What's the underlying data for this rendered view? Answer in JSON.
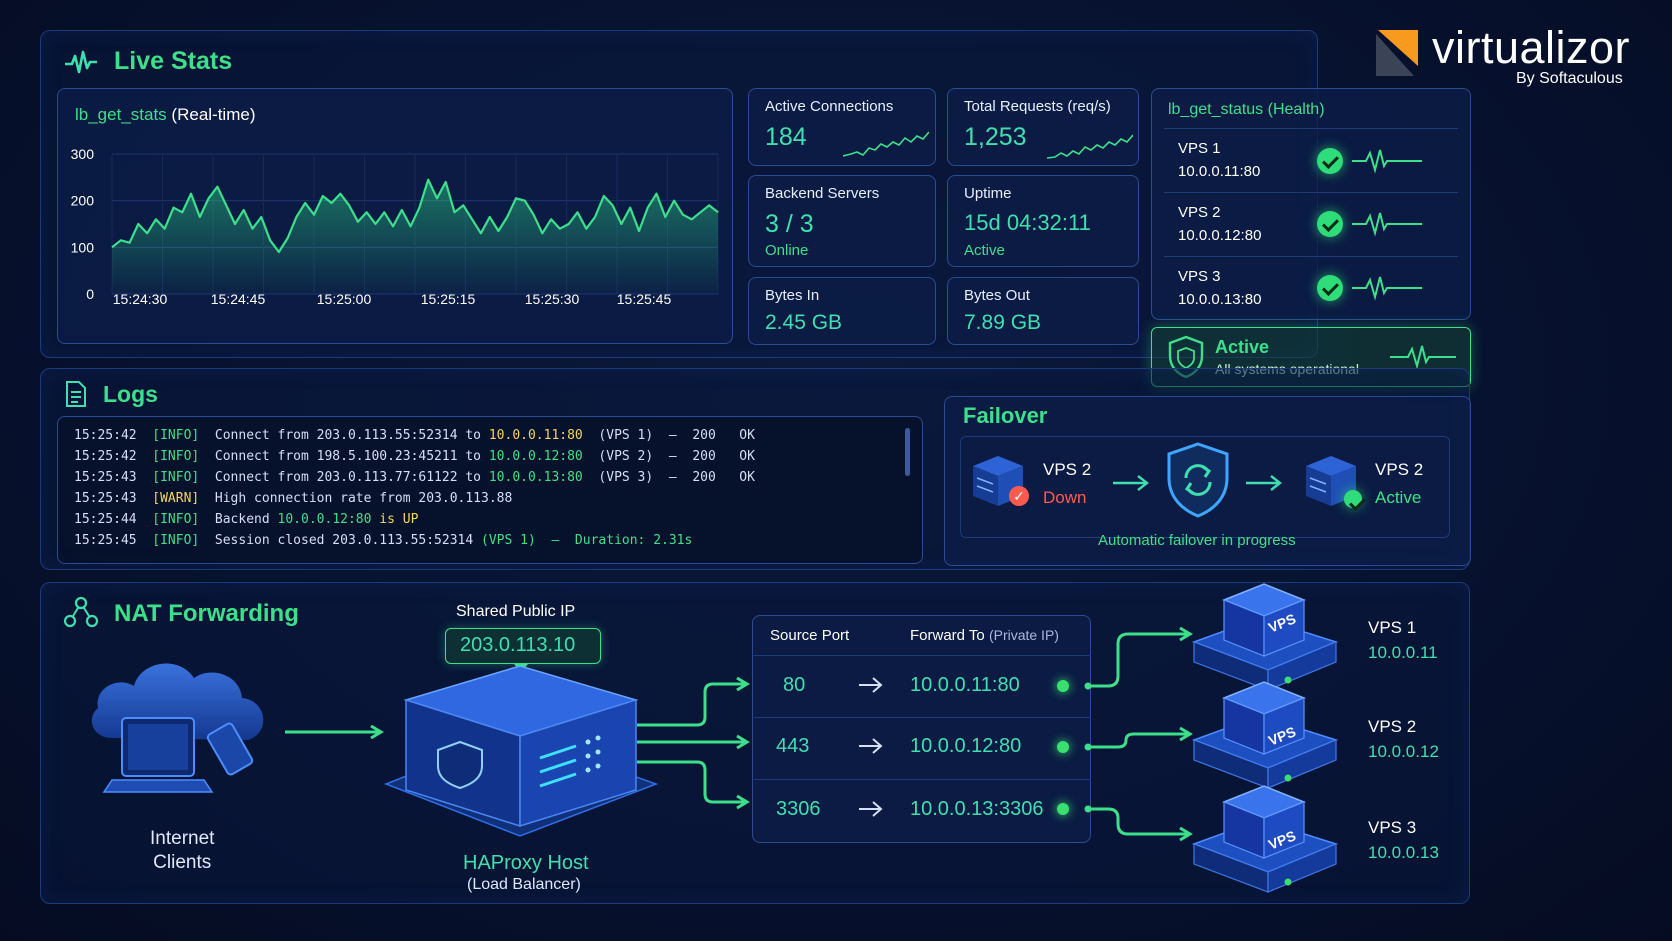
{
  "brand": {
    "name": "virtualizor",
    "by": "By Softaculous"
  },
  "live_stats": {
    "title": "Live Stats",
    "chart": {
      "func": "lb_get_stats",
      "mode": "(Real-time)",
      "y_ticks": [
        "300",
        "200",
        "100",
        "0"
      ],
      "x_ticks": [
        "15:24:30",
        "15:24:45",
        "15:25:00",
        "15:25:15",
        "15:25:30",
        "15:25:45"
      ]
    },
    "active_connections": {
      "label": "Active Connections",
      "value": "184"
    },
    "total_requests": {
      "label": "Total Requests (req/s)",
      "value": "1,253"
    },
    "backend_servers": {
      "label": "Backend Servers",
      "value": "3 / 3",
      "status": "Online"
    },
    "uptime": {
      "label": "Uptime",
      "value": "15d 04:32:11",
      "status": "Active"
    },
    "bytes_in": {
      "label": "Bytes In",
      "value": "2.45 GB"
    },
    "bytes_out": {
      "label": "Bytes Out",
      "value": "7.89 GB"
    }
  },
  "chart_data": {
    "type": "area",
    "title": "lb_get_stats (Real-time)",
    "xlabel": "",
    "ylabel": "",
    "ylim": [
      0,
      300
    ],
    "x_ticks": [
      "15:24:30",
      "15:24:45",
      "15:25:00",
      "15:25:15",
      "15:25:30",
      "15:25:45"
    ],
    "series": [
      {
        "values": [
          100,
          115,
          110,
          150,
          130,
          160,
          140,
          185,
          175,
          215,
          165,
          205,
          230,
          190,
          150,
          180,
          140,
          165,
          115,
          90,
          120,
          165,
          195,
          170,
          210,
          195,
          215,
          190,
          155,
          175,
          150,
          175,
          145,
          180,
          145,
          185,
          245,
          205,
          240,
          175,
          190,
          160,
          130,
          165,
          135,
          165,
          205,
          200,
          170,
          130,
          160,
          140,
          150,
          175,
          140,
          165,
          210,
          190,
          150,
          185,
          135,
          185,
          215,
          165,
          200,
          170,
          160,
          175,
          190,
          175
        ]
      }
    ]
  },
  "health": {
    "title": "lb_get_status (Health)",
    "servers": [
      {
        "name": "VPS 1",
        "addr": "10.0.0.11:80"
      },
      {
        "name": "VPS 2",
        "addr": "10.0.0.12:80"
      },
      {
        "name": "VPS 3",
        "addr": "10.0.0.13:80"
      }
    ],
    "overall": {
      "status": "Active",
      "note": "All systems operational"
    }
  },
  "logs": {
    "title": "Logs",
    "lines": [
      {
        "time": "15:25:42",
        "level": "[INFO]",
        "pre": "Connect from 203.0.113.55:52314 to ",
        "ip": "10.0.0.11:80",
        "post": "  (VPS 1)  –  200   OK"
      },
      {
        "time": "15:25:42",
        "level": "[INFO]",
        "pre": "Connect from 198.5.100.23:45211 to ",
        "ip": "10.0.0.12:80",
        "post": "  (VPS 2)  –  200   OK"
      },
      {
        "time": "15:25:43",
        "level": "[INFO]",
        "pre": "Connect from 203.0.113.77:61122 to ",
        "ip": "10.0.0.13:80",
        "post": "  (VPS 3)  –  200   OK"
      },
      {
        "time": "15:25:43",
        "level": "[WARN]",
        "pre": "High connection rate from 203.0.113.88",
        "ip": "",
        "post": ""
      },
      {
        "time": "15:25:44",
        "level": "[INFO]",
        "pre": "Backend ",
        "ip": "10.0.0.12:80",
        "post": " is UP"
      },
      {
        "time": "15:25:45",
        "level": "[INFO]",
        "pre": "Session closed 203.0.113.55:52314 ",
        "ip": "",
        "post": "(VPS 1)  –  Duration: 2.31s"
      }
    ]
  },
  "failover": {
    "title": "Failover",
    "from": {
      "name": "VPS 2",
      "state": "Down"
    },
    "to": {
      "name": "VPS 2",
      "state": "Active"
    },
    "note": "Automatic failover in progress"
  },
  "nat": {
    "title": "NAT Forwarding",
    "clients_label_1": "Internet",
    "clients_label_2": "Clients",
    "shared_ip_label": "Shared Public IP",
    "shared_ip": "203.0.113.10",
    "host_label": "HAProxy Host",
    "host_sub": "(Load Balancer)",
    "table_headers": {
      "source": "Source Port",
      "forward": "Forward To",
      "forward_sub": "(Private IP)"
    },
    "rules": [
      {
        "port": "80",
        "target": "10.0.0.11:80"
      },
      {
        "port": "443",
        "target": "10.0.0.12:80"
      },
      {
        "port": "3306",
        "target": "10.0.0.13:3306"
      }
    ],
    "vps": [
      {
        "name": "VPS 1",
        "ip": "10.0.0.11",
        "badge": "VPS"
      },
      {
        "name": "VPS 2",
        "ip": "10.0.0.12",
        "badge": "VPS"
      },
      {
        "name": "VPS 3",
        "ip": "10.0.0.13",
        "badge": "VPS"
      }
    ]
  },
  "colors": {
    "accent_green": "#3de08a",
    "accent_teal": "#3ee0b0",
    "down_red": "#ff5a4e",
    "brand_orange": "#f79a1e"
  }
}
